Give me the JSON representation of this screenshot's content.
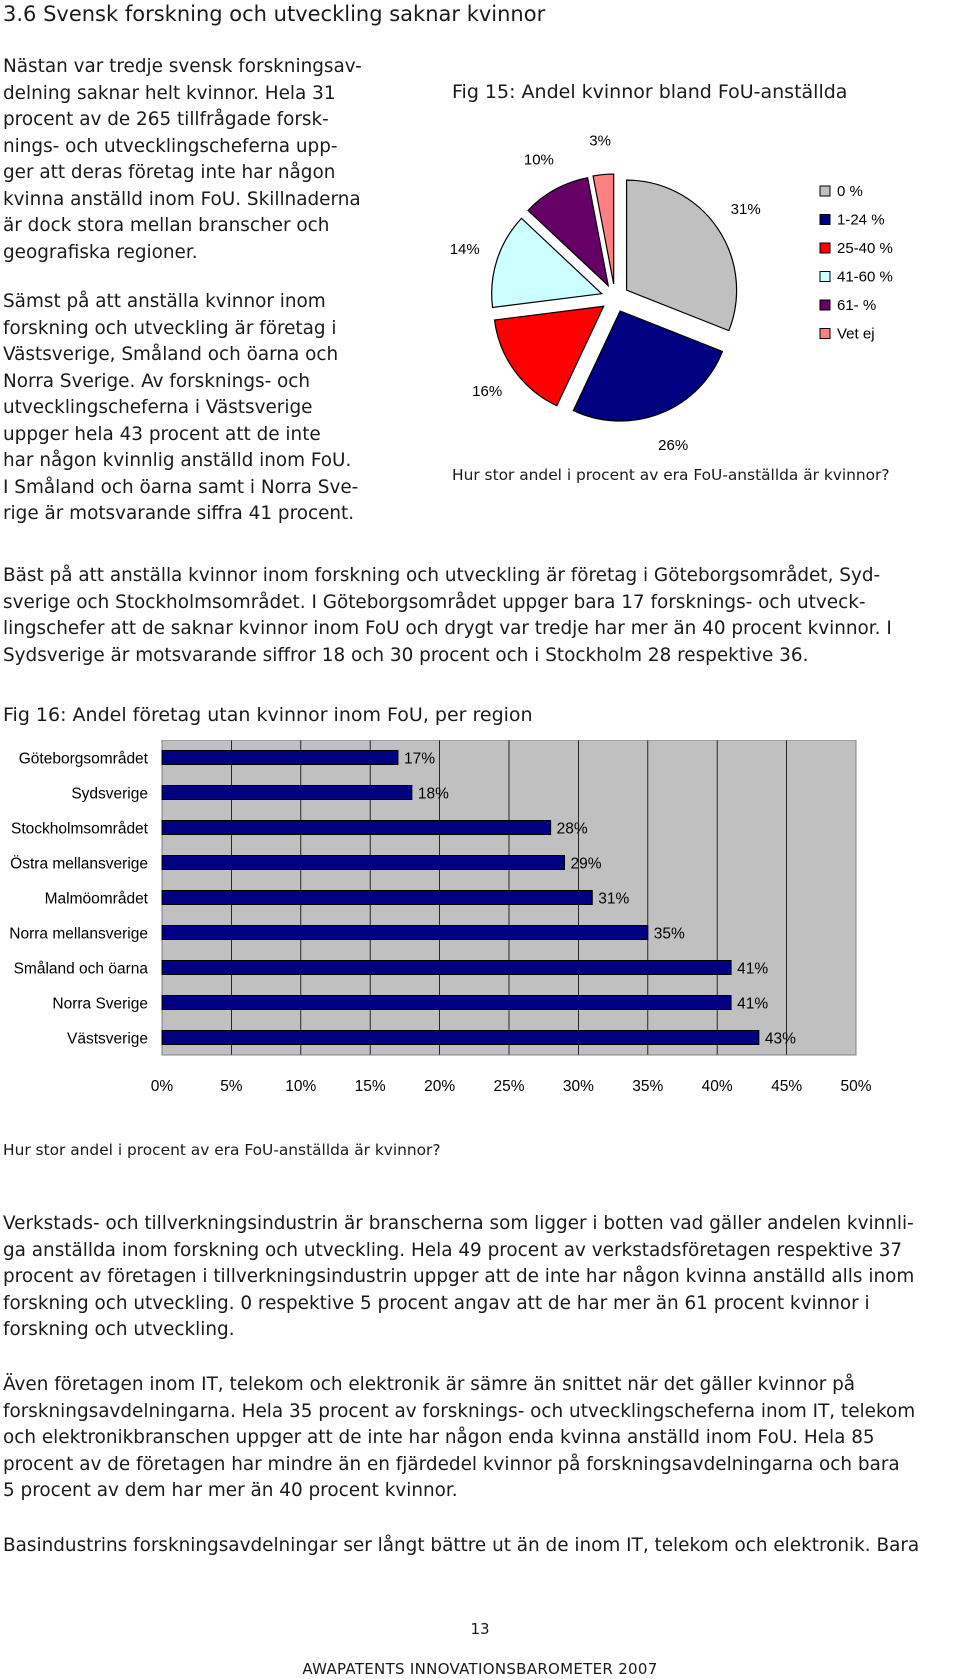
{
  "section_heading": "3.6 Svensk forskning och utveckling saknar kvinnor",
  "paragraphs": {
    "p1": "Nästan var tredje svensk forskningsav-\ndelning saknar helt kvinnor. Hela 31\nprocent av de 265 tillfrågade forsk-\nnings- och utvecklingscheferna upp-\nger att deras företag inte har någon\nkvinna anställd inom FoU. Skillnaderna\när dock stora mellan branscher och\ngeografiska regioner.",
    "p2": "Sämst på att anställa kvinnor inom\nforskning och utveckling är företag i\nVästsverige, Småland och öarna och\nNorra Sverige. Av forsknings- och\nutvecklingscheferna i Västsverige\nuppger hela 43 procent att de inte\nhar någon kvinnlig anställd inom FoU.\nI Småland och öarna samt i Norra Sve-\nrige är motsvarande siffra 41 procent.",
    "p3": "Bäst på att anställa kvinnor inom forskning och utveckling är företag i Göteborgsområdet, Syd-\nsverige och Stockholmsområdet. I Göteborgsområdet uppger bara 17 forsknings- och utveck-\nlingschefer att de saknar kvinnor inom FoU och drygt var tredje har mer än 40 procent kvinnor. I\nSydsverige är motsvarande siffror 18 och 30 procent och i Stockholm 28 respektive 36.",
    "p4": "Verkstads- och tillverkningsindustrin är branscherna som ligger i botten vad gäller andelen kvinnli-\nga anställda inom forskning och utveckling. Hela 49 procent av verkstadsföretagen respektive 37\nprocent av företagen i tillverkningsindustrin uppger att de inte har någon kvinna anställd alls inom\nforskning och utveckling. 0 respektive 5 procent angav att de har mer än 61 procent kvinnor i\nforskning och utveckling.",
    "p5": "Även företagen inom IT, telekom och elektronik är sämre än snittet när det gäller kvinnor på\nforskningsavdelningarna. Hela 35 procent av forsknings- och utvecklingscheferna inom IT, telekom\noch elektronikbranschen uppger att de inte har någon enda kvinna anställd inom FoU. Hela 85\nprocent av de företagen har mindre än en fjärdedel kvinnor på forskningsavdelningarna och bara\n5 procent av dem har mer än 40 procent kvinnor.",
    "p6": "Basindustrins forskningsavdelningar ser långt bättre ut än de inom IT, telekom och elektronik. Bara"
  },
  "chart_data": [
    {
      "type": "pie",
      "title": "Fig 15: Andel kvinnor bland FoU-anställda",
      "question": "Hur stor andel i procent av era FoU-anställda är kvinnor?",
      "categories": [
        "0 %",
        "1-24 %",
        "25-40 %",
        "41-60 %",
        "61- %",
        "Vet ej"
      ],
      "values": [
        31,
        26,
        16,
        14,
        10,
        3
      ],
      "value_labels": [
        "31%",
        "26%",
        "16%",
        "14%",
        "10%",
        "3%"
      ],
      "colors": [
        "#c0c0c0",
        "#000080",
        "#ff0000",
        "#ccffff",
        "#660066",
        "#ff8080"
      ],
      "exploded": true,
      "legend_position": "right"
    },
    {
      "type": "bar",
      "orientation": "horizontal",
      "title": "Fig 16: Andel företag utan kvinnor inom FoU, per region",
      "question": "Hur stor andel i procent av era FoU-anställda är kvinnor?",
      "categories": [
        "Göteborgsområdet",
        "Sydsverige",
        "Stockholmsområdet",
        "Östra mellansverige",
        "Malmöområdet",
        "Norra mellansverige",
        "Småland och öarna",
        "Norra Sverige",
        "Västsverige"
      ],
      "values": [
        17,
        18,
        28,
        29,
        31,
        35,
        41,
        41,
        43
      ],
      "value_labels": [
        "17%",
        "18%",
        "28%",
        "29%",
        "31%",
        "35%",
        "41%",
        "41%",
        "43%"
      ],
      "x_ticks": [
        "0%",
        "5%",
        "10%",
        "15%",
        "20%",
        "25%",
        "30%",
        "35%",
        "40%",
        "45%",
        "50%"
      ],
      "xlim": [
        0,
        50
      ],
      "bar_color": "#000080",
      "plot_background": "#c0c0c0",
      "grid": true
    }
  ],
  "footer": {
    "page_number": "13",
    "publication": "AWAPATENTS INNOVATIONSBAROMETER 2007"
  }
}
